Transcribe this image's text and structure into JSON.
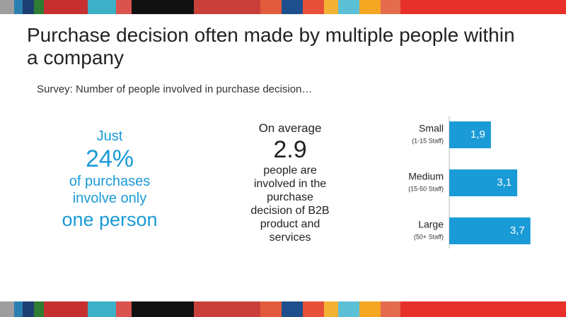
{
  "header": {
    "title": "Purchase decision often made by multiple people within a company",
    "subtitle": "Survey: Number of people involved in purchase decision…"
  },
  "left_stat": {
    "intro": "Just",
    "figure": "24%",
    "text": "of purchases involve only",
    "emphasis": "one person"
  },
  "middle_stat": {
    "intro": "On average",
    "figure": "2.9",
    "text": "people are involved in the purchase decision of B2B product and services"
  },
  "chart_data": {
    "type": "bar",
    "orientation": "horizontal",
    "categories": [
      "Small",
      "Medium",
      "Large"
    ],
    "category_notes": [
      "(1-15 Staff)",
      "(15-50 Staff)",
      "(50+ Staff)"
    ],
    "values": [
      1.9,
      3.1,
      3.7
    ],
    "value_labels": [
      "1,9",
      "3,1",
      "3,7"
    ],
    "color": "#1a9ad6",
    "xlim": [
      0,
      4
    ]
  }
}
